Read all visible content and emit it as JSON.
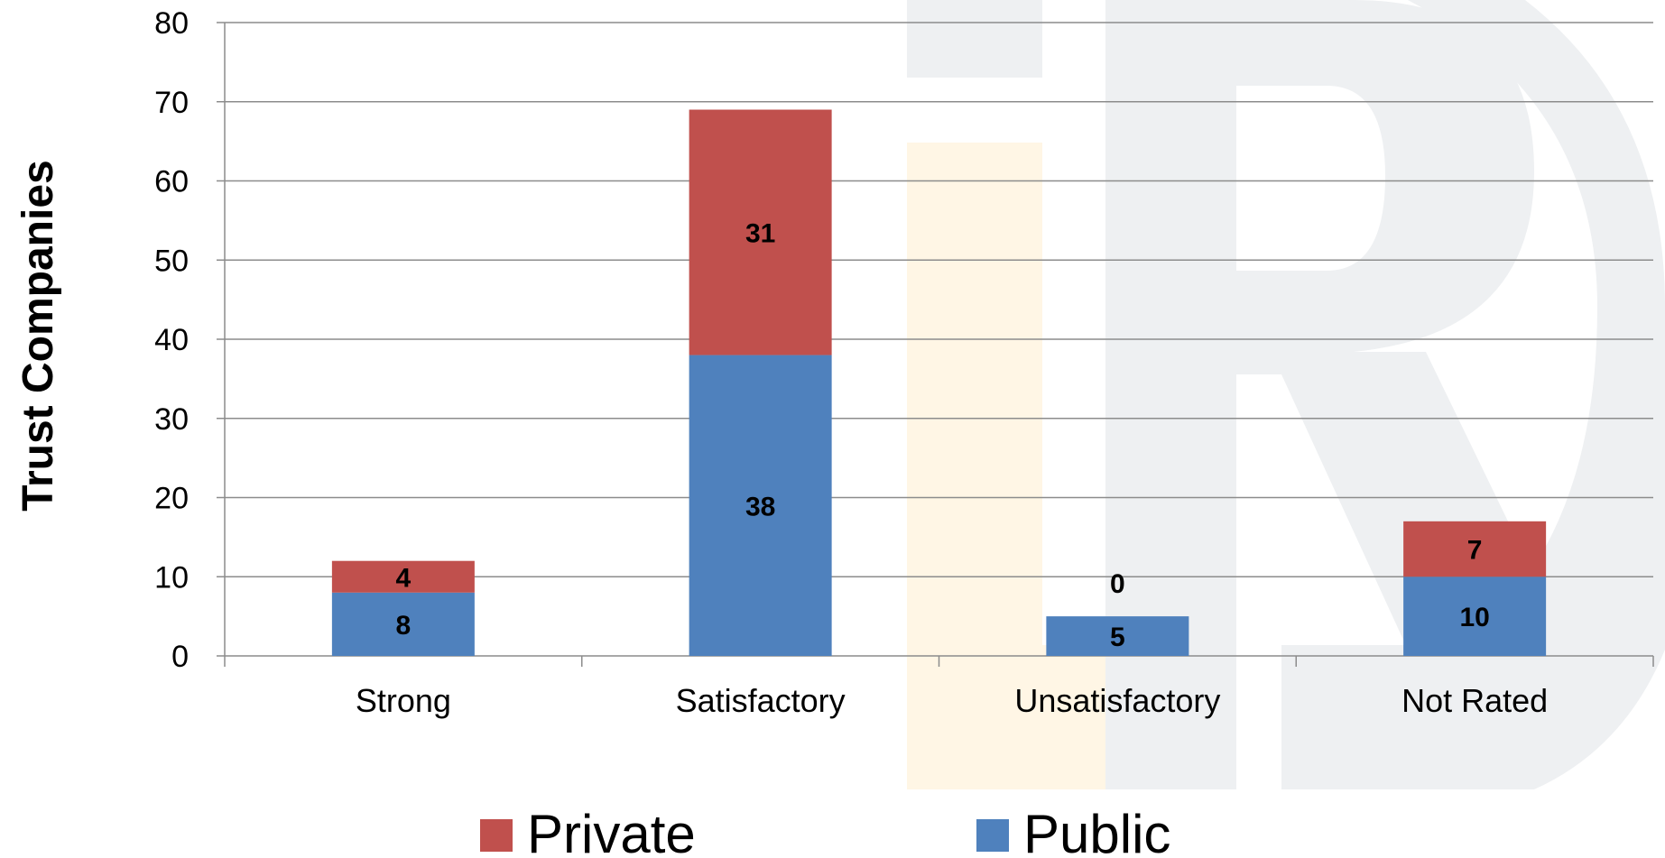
{
  "chart_data": {
    "type": "bar",
    "stacked": true,
    "categories": [
      "Strong",
      "Satisfactory",
      "Unsatisfactory",
      "Not Rated"
    ],
    "series": [
      {
        "name": "Public",
        "values": [
          8,
          38,
          5,
          10
        ],
        "color": "#4F81BD"
      },
      {
        "name": "Private",
        "values": [
          4,
          31,
          0,
          7
        ],
        "color": "#C0504D"
      }
    ],
    "title": "",
    "xlabel": "",
    "ylabel": "Trust Companies",
    "ylim": [
      0,
      80
    ],
    "yticks": [
      0,
      10,
      20,
      30,
      40,
      50,
      60,
      70,
      80
    ],
    "grid": true,
    "legend": {
      "placement": "bottom",
      "order": [
        "Private",
        "Public"
      ]
    },
    "watermark": {
      "colors": [
        "#EEF0F2",
        "#FFF6E5"
      ]
    }
  }
}
